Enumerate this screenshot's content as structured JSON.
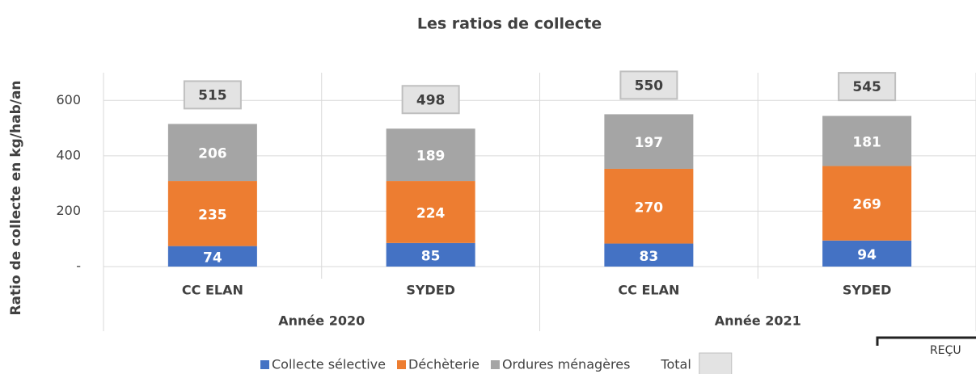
{
  "chart_data": {
    "type": "stacked_bar",
    "title": "Les ratios de collecte",
    "y_label": "Ratio de collecte en kg/hab/an",
    "categories": [
      "CC ELAN",
      "SYDED",
      "CC ELAN",
      "SYDED"
    ],
    "groups": [
      {
        "name": "Année 2020",
        "span": 2
      },
      {
        "name": "Année 2021",
        "span": 2
      }
    ],
    "series": [
      {
        "name": "Collecte sélective",
        "color": "#4472c4",
        "values": [
          74,
          85,
          83,
          94
        ]
      },
      {
        "name": "Déchèterie",
        "color": "#ed7d31",
        "values": [
          235,
          224,
          270,
          269
        ]
      },
      {
        "name": "Ordures ménagères",
        "color": "#a5a5a5",
        "values": [
          206,
          189,
          197,
          181
        ]
      }
    ],
    "total": {
      "name": "Total",
      "color": "#e3e3e3",
      "values": [
        515,
        498,
        550,
        545
      ]
    },
    "ylim": [
      0,
      700
    ],
    "yticks": [
      {
        "value": 0,
        "label": "-"
      },
      200,
      400,
      600
    ],
    "legend": "bottom",
    "stamp": "REÇU"
  }
}
